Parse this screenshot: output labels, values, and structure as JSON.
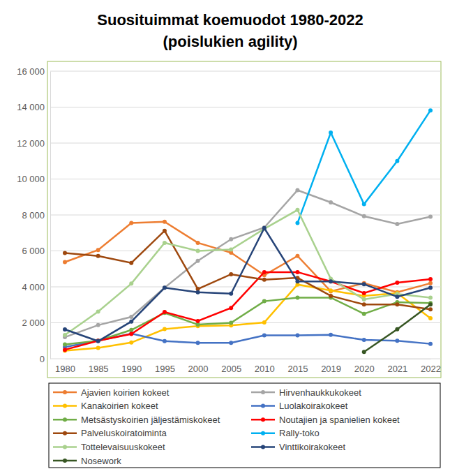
{
  "chart_data": {
    "type": "line",
    "title": [
      "Suosituimmat koemuodot 1980-2022",
      "(poislukien agility)"
    ],
    "categories": [
      "1980",
      "1985",
      "1990",
      "1995",
      "2000",
      "2005",
      "2010",
      "2015",
      "2019",
      "2020",
      "2021",
      "2022"
    ],
    "ylim": [
      0,
      16000
    ],
    "yticks": [
      0,
      {
        "value": 2000,
        "label": "2 000"
      },
      {
        "value": 4000,
        "label": "4 000"
      },
      {
        "value": 6000,
        "label": "6 000"
      },
      {
        "value": 8000,
        "label": "8 000"
      },
      {
        "value": 10000,
        "label": "10 000"
      },
      {
        "value": 12000,
        "label": "12 000"
      },
      {
        "value": 14000,
        "label": "14 000"
      },
      {
        "value": 16000,
        "label": "16 000"
      }
    ],
    "grid": true,
    "legend": "bottom",
    "marker": "circle",
    "series": [
      {
        "name": "Ajavien koirien kokeet",
        "color": "#ed7d31",
        "values": [
          5380,
          6050,
          7550,
          7620,
          6450,
          5900,
          4650,
          5720,
          3750,
          4200,
          3700,
          4200
        ]
      },
      {
        "name": "Hirvenhaukkukokeet",
        "color": "#a5a5a5",
        "values": [
          1200,
          1870,
          2330,
          3950,
          5450,
          6650,
          7300,
          9380,
          8700,
          7930,
          7500,
          7900
        ]
      },
      {
        "name": "Kanakoirien kokeet",
        "color": "#ffc000",
        "values": [
          450,
          600,
          900,
          1650,
          1820,
          1850,
          2020,
          4130,
          3800,
          3500,
          3650,
          2250
        ]
      },
      {
        "name": "Luolakoirakokeet",
        "color": "#4472c4",
        "values": [
          650,
          1000,
          1400,
          980,
          880,
          880,
          1300,
          1300,
          1330,
          1050,
          1000,
          830
        ]
      },
      {
        "name": "Metsästyskoirien jäljestämiskokeet",
        "color": "#70ad47",
        "values": [
          800,
          1000,
          1600,
          2550,
          1900,
          2000,
          3200,
          3400,
          3400,
          2500,
          3150,
          3100
        ]
      },
      {
        "name": "Noutajien ja spanielien kokeet",
        "color": "#ff0000",
        "values": [
          500,
          1000,
          1380,
          2600,
          2100,
          2830,
          4820,
          4820,
          4300,
          3650,
          4230,
          4430
        ]
      },
      {
        "name": "Palveluskoiratoiminta",
        "color": "#9e480e",
        "values": [
          5880,
          5720,
          5330,
          7120,
          3880,
          4700,
          4400,
          4500,
          3500,
          3020,
          3020,
          2750
        ]
      },
      {
        "name": "Rally-toko",
        "color": "#00b0f0",
        "values": [
          null,
          null,
          null,
          null,
          null,
          null,
          null,
          7550,
          12580,
          8600,
          11000,
          13820
        ]
      },
      {
        "name": "Tottelevaisuuskokeet",
        "color": "#a9d18e",
        "values": [
          1320,
          2620,
          4180,
          6450,
          6000,
          6080,
          7230,
          8280,
          4450,
          3300,
          3600,
          3400
        ]
      },
      {
        "name": "Vinttikoirakokeet",
        "color": "#264478",
        "values": [
          1630,
          980,
          2070,
          3950,
          3700,
          3620,
          7270,
          4300,
          4300,
          4150,
          3450,
          3950
        ]
      },
      {
        "name": "Nosework",
        "color": "#375623",
        "values": [
          null,
          null,
          null,
          null,
          null,
          null,
          null,
          null,
          null,
          380,
          1640,
          3020
        ]
      }
    ]
  }
}
